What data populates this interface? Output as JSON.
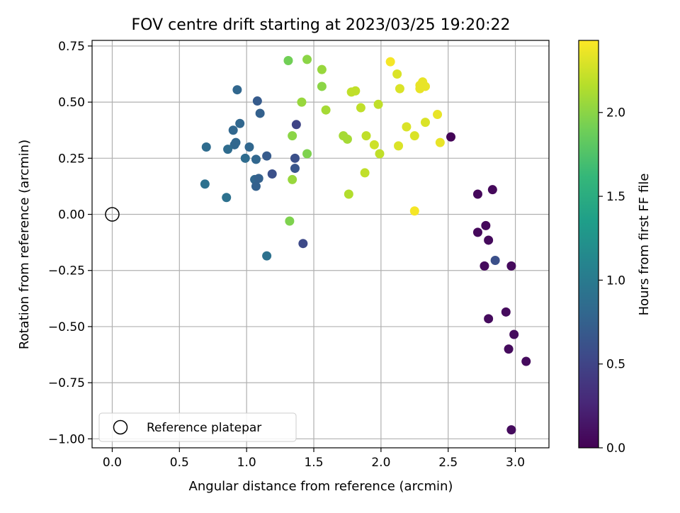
{
  "chart_data": {
    "type": "scatter",
    "title": "FOV centre drift starting at 2023/03/25 19:20:22",
    "xlabel": "Angular distance from reference (arcmin)",
    "ylabel": "Rotation from reference (arcmin)",
    "xlim": [
      -0.15,
      3.25
    ],
    "ylim": [
      -1.04,
      0.775
    ],
    "xticks": [
      0.0,
      0.5,
      1.0,
      1.5,
      2.0,
      2.5,
      3.0
    ],
    "xtick_labels": [
      "0.0",
      "0.5",
      "1.0",
      "1.5",
      "2.0",
      "2.5",
      "3.0"
    ],
    "yticks": [
      -1.0,
      -0.75,
      -0.5,
      -0.25,
      0.0,
      0.25,
      0.5,
      0.75
    ],
    "ytick_labels": [
      "−1.00",
      "−0.75",
      "−0.50",
      "−0.25",
      "0.00",
      "0.25",
      "0.50",
      "0.75"
    ],
    "grid": true,
    "legend": {
      "placement": "lower-left",
      "entries": [
        "Reference platepar"
      ]
    },
    "reference_point": {
      "x": 0.0,
      "y": 0.0,
      "label": "Reference platepar",
      "marker": "open-circle"
    },
    "colorbar": {
      "label": "Hours from first FF file",
      "range": [
        0.0,
        2.43
      ],
      "ticks": [
        0.0,
        0.5,
        1.0,
        1.5,
        2.0
      ],
      "tick_labels": [
        "0.0",
        "0.5",
        "1.0",
        "1.5",
        "2.0"
      ],
      "colormap": "viridis",
      "stops": [
        "#440154",
        "#482878",
        "#3e4989",
        "#31688e",
        "#26828e",
        "#1f9e89",
        "#35b779",
        "#6ece58",
        "#b5de2b",
        "#fde725"
      ]
    },
    "points": [
      {
        "x": 2.52,
        "y": 0.345,
        "h": 0.02
      },
      {
        "x": 2.72,
        "y": 0.09,
        "h": 0.05
      },
      {
        "x": 2.83,
        "y": 0.11,
        "h": 0.05
      },
      {
        "x": 2.72,
        "y": -0.08,
        "h": 0.05
      },
      {
        "x": 2.78,
        "y": -0.05,
        "h": 0.05
      },
      {
        "x": 2.8,
        "y": -0.115,
        "h": 0.06
      },
      {
        "x": 2.77,
        "y": -0.23,
        "h": 0.06
      },
      {
        "x": 2.97,
        "y": -0.23,
        "h": 0.06
      },
      {
        "x": 2.85,
        "y": -0.205,
        "h": 0.6
      },
      {
        "x": 2.8,
        "y": -0.465,
        "h": 0.07
      },
      {
        "x": 2.93,
        "y": -0.435,
        "h": 0.07
      },
      {
        "x": 2.99,
        "y": -0.535,
        "h": 0.07
      },
      {
        "x": 2.95,
        "y": -0.6,
        "h": 0.07
      },
      {
        "x": 3.08,
        "y": -0.655,
        "h": 0.07
      },
      {
        "x": 2.97,
        "y": -0.96,
        "h": 0.07
      },
      {
        "x": 0.93,
        "y": 0.555,
        "h": 0.8
      },
      {
        "x": 1.08,
        "y": 0.505,
        "h": 0.7
      },
      {
        "x": 1.1,
        "y": 0.45,
        "h": 0.75
      },
      {
        "x": 0.95,
        "y": 0.405,
        "h": 0.8
      },
      {
        "x": 0.9,
        "y": 0.375,
        "h": 0.8
      },
      {
        "x": 0.91,
        "y": 0.31,
        "h": 0.8
      },
      {
        "x": 0.92,
        "y": 0.32,
        "h": 0.8
      },
      {
        "x": 0.7,
        "y": 0.3,
        "h": 0.85
      },
      {
        "x": 0.86,
        "y": 0.29,
        "h": 0.85
      },
      {
        "x": 1.02,
        "y": 0.3,
        "h": 0.8
      },
      {
        "x": 0.99,
        "y": 0.25,
        "h": 0.85
      },
      {
        "x": 1.07,
        "y": 0.245,
        "h": 0.8
      },
      {
        "x": 1.15,
        "y": 0.26,
        "h": 0.7
      },
      {
        "x": 1.06,
        "y": 0.155,
        "h": 0.8
      },
      {
        "x": 1.09,
        "y": 0.16,
        "h": 0.75
      },
      {
        "x": 1.07,
        "y": 0.125,
        "h": 0.75
      },
      {
        "x": 1.19,
        "y": 0.18,
        "h": 0.6
      },
      {
        "x": 0.69,
        "y": 0.135,
        "h": 0.9
      },
      {
        "x": 0.85,
        "y": 0.075,
        "h": 0.9
      },
      {
        "x": 1.15,
        "y": -0.185,
        "h": 0.9
      },
      {
        "x": 1.37,
        "y": 0.4,
        "h": 0.5
      },
      {
        "x": 1.36,
        "y": 0.25,
        "h": 0.6
      },
      {
        "x": 1.36,
        "y": 0.205,
        "h": 0.65
      },
      {
        "x": 1.42,
        "y": -0.13,
        "h": 0.55
      },
      {
        "x": 1.31,
        "y": 0.685,
        "h": 1.9
      },
      {
        "x": 1.45,
        "y": 0.69,
        "h": 2.0
      },
      {
        "x": 1.56,
        "y": 0.645,
        "h": 2.05
      },
      {
        "x": 1.56,
        "y": 0.57,
        "h": 2.0
      },
      {
        "x": 1.41,
        "y": 0.5,
        "h": 2.05
      },
      {
        "x": 1.59,
        "y": 0.465,
        "h": 2.1
      },
      {
        "x": 1.34,
        "y": 0.35,
        "h": 2.0
      },
      {
        "x": 1.45,
        "y": 0.27,
        "h": 1.95
      },
      {
        "x": 1.34,
        "y": 0.155,
        "h": 2.05
      },
      {
        "x": 1.32,
        "y": -0.03,
        "h": 1.95
      },
      {
        "x": 1.72,
        "y": 0.35,
        "h": 2.1
      },
      {
        "x": 1.75,
        "y": 0.335,
        "h": 2.1
      },
      {
        "x": 1.76,
        "y": 0.09,
        "h": 2.15
      },
      {
        "x": 1.78,
        "y": 0.545,
        "h": 2.2
      },
      {
        "x": 1.81,
        "y": 0.55,
        "h": 2.2
      },
      {
        "x": 1.85,
        "y": 0.475,
        "h": 2.2
      },
      {
        "x": 1.89,
        "y": 0.35,
        "h": 2.2
      },
      {
        "x": 1.95,
        "y": 0.31,
        "h": 2.25
      },
      {
        "x": 1.98,
        "y": 0.49,
        "h": 2.2
      },
      {
        "x": 1.99,
        "y": 0.27,
        "h": 2.2
      },
      {
        "x": 1.88,
        "y": 0.185,
        "h": 2.2
      },
      {
        "x": 2.07,
        "y": 0.68,
        "h": 2.4
      },
      {
        "x": 2.12,
        "y": 0.625,
        "h": 2.3
      },
      {
        "x": 2.14,
        "y": 0.56,
        "h": 2.3
      },
      {
        "x": 2.13,
        "y": 0.305,
        "h": 2.3
      },
      {
        "x": 2.19,
        "y": 0.39,
        "h": 2.3
      },
      {
        "x": 2.25,
        "y": 0.35,
        "h": 2.3
      },
      {
        "x": 2.25,
        "y": 0.015,
        "h": 2.4
      },
      {
        "x": 2.29,
        "y": 0.575,
        "h": 2.35
      },
      {
        "x": 2.31,
        "y": 0.59,
        "h": 2.35
      },
      {
        "x": 2.29,
        "y": 0.56,
        "h": 2.35
      },
      {
        "x": 2.33,
        "y": 0.57,
        "h": 2.35
      },
      {
        "x": 2.33,
        "y": 0.41,
        "h": 2.3
      },
      {
        "x": 2.42,
        "y": 0.445,
        "h": 2.35
      },
      {
        "x": 2.44,
        "y": 0.32,
        "h": 2.35
      }
    ]
  }
}
